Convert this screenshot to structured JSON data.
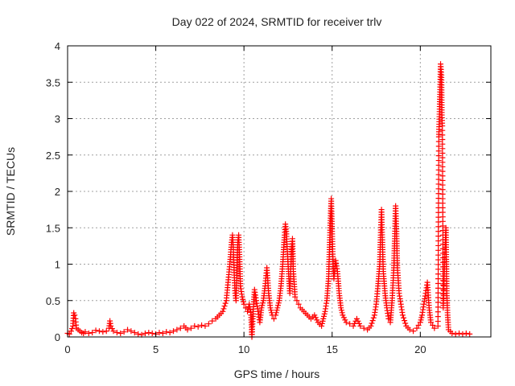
{
  "chart_data": {
    "type": "scatter",
    "title": "Day 022 of 2024, SRMTID for receiver trlv",
    "xlabel": "GPS time / hours",
    "ylabel": "SRMTID / TECUs",
    "xlim": [
      0,
      24
    ],
    "ylim": [
      0,
      4
    ],
    "xticks": [
      0,
      5,
      10,
      15,
      20
    ],
    "yticks": [
      0,
      0.5,
      1,
      1.5,
      2,
      2.5,
      3,
      3.5,
      4
    ],
    "grid": true,
    "marker": "+",
    "series": [
      {
        "name": "SRMTID",
        "color": "#ff0000",
        "points": [
          [
            0.0,
            0.05
          ],
          [
            0.1,
            0.04
          ],
          [
            0.2,
            0.08
          ],
          [
            0.3,
            0.15
          ],
          [
            0.35,
            0.33
          ],
          [
            0.4,
            0.3
          ],
          [
            0.45,
            0.25
          ],
          [
            0.5,
            0.12
          ],
          [
            0.6,
            0.1
          ],
          [
            0.7,
            0.08
          ],
          [
            0.8,
            0.06
          ],
          [
            0.9,
            0.05
          ],
          [
            1.0,
            0.07
          ],
          [
            1.2,
            0.05
          ],
          [
            1.4,
            0.06
          ],
          [
            1.6,
            0.09
          ],
          [
            1.8,
            0.08
          ],
          [
            2.0,
            0.07
          ],
          [
            2.2,
            0.08
          ],
          [
            2.35,
            0.12
          ],
          [
            2.4,
            0.22
          ],
          [
            2.45,
            0.15
          ],
          [
            2.6,
            0.08
          ],
          [
            2.8,
            0.06
          ],
          [
            3.0,
            0.05
          ],
          [
            3.2,
            0.07
          ],
          [
            3.4,
            0.1
          ],
          [
            3.6,
            0.08
          ],
          [
            3.8,
            0.06
          ],
          [
            4.0,
            0.04
          ],
          [
            4.2,
            0.03
          ],
          [
            4.4,
            0.05
          ],
          [
            4.6,
            0.06
          ],
          [
            4.8,
            0.05
          ],
          [
            5.0,
            0.04
          ],
          [
            5.2,
            0.06
          ],
          [
            5.4,
            0.05
          ],
          [
            5.6,
            0.07
          ],
          [
            5.8,
            0.06
          ],
          [
            6.0,
            0.08
          ],
          [
            6.2,
            0.1
          ],
          [
            6.4,
            0.12
          ],
          [
            6.6,
            0.15
          ],
          [
            6.8,
            0.1
          ],
          [
            7.0,
            0.12
          ],
          [
            7.2,
            0.15
          ],
          [
            7.4,
            0.14
          ],
          [
            7.6,
            0.16
          ],
          [
            7.8,
            0.15
          ],
          [
            8.0,
            0.18
          ],
          [
            8.2,
            0.22
          ],
          [
            8.4,
            0.25
          ],
          [
            8.6,
            0.3
          ],
          [
            8.8,
            0.35
          ],
          [
            9.0,
            0.5
          ],
          [
            9.1,
            0.75
          ],
          [
            9.2,
            1.0
          ],
          [
            9.3,
            1.3
          ],
          [
            9.35,
            1.4
          ],
          [
            9.4,
            1.2
          ],
          [
            9.45,
            0.85
          ],
          [
            9.5,
            0.6
          ],
          [
            9.55,
            0.5
          ],
          [
            9.6,
            0.95
          ],
          [
            9.65,
            1.3
          ],
          [
            9.7,
            1.4
          ],
          [
            9.75,
            1.1
          ],
          [
            9.8,
            0.7
          ],
          [
            9.9,
            0.55
          ],
          [
            10.0,
            0.45
          ],
          [
            10.1,
            0.4
          ],
          [
            10.2,
            0.35
          ],
          [
            10.3,
            0.45
          ],
          [
            10.4,
            0.3
          ],
          [
            10.45,
            0.0
          ],
          [
            10.5,
            0.25
          ],
          [
            10.6,
            0.65
          ],
          [
            10.7,
            0.5
          ],
          [
            10.8,
            0.35
          ],
          [
            10.9,
            0.2
          ],
          [
            11.0,
            0.4
          ],
          [
            11.1,
            0.5
          ],
          [
            11.2,
            0.7
          ],
          [
            11.3,
            0.95
          ],
          [
            11.4,
            0.6
          ],
          [
            11.5,
            0.4
          ],
          [
            11.6,
            0.3
          ],
          [
            11.7,
            0.25
          ],
          [
            11.8,
            0.3
          ],
          [
            11.9,
            0.4
          ],
          [
            12.0,
            0.5
          ],
          [
            12.1,
            0.7
          ],
          [
            12.2,
            1.0
          ],
          [
            12.3,
            1.4
          ],
          [
            12.35,
            1.55
          ],
          [
            12.4,
            1.45
          ],
          [
            12.5,
            1.0
          ],
          [
            12.6,
            0.6
          ],
          [
            12.7,
            1.2
          ],
          [
            12.75,
            1.35
          ],
          [
            12.8,
            0.9
          ],
          [
            12.9,
            0.55
          ],
          [
            13.0,
            0.5
          ],
          [
            13.1,
            0.45
          ],
          [
            13.2,
            0.4
          ],
          [
            13.4,
            0.35
          ],
          [
            13.6,
            0.3
          ],
          [
            13.8,
            0.25
          ],
          [
            14.0,
            0.3
          ],
          [
            14.2,
            0.2
          ],
          [
            14.4,
            0.15
          ],
          [
            14.6,
            0.35
          ],
          [
            14.7,
            0.5
          ],
          [
            14.8,
            0.8
          ],
          [
            14.85,
            1.2
          ],
          [
            14.9,
            1.6
          ],
          [
            14.95,
            1.9
          ],
          [
            15.0,
            1.45
          ],
          [
            15.05,
            1.0
          ],
          [
            15.1,
            0.8
          ],
          [
            15.2,
            1.05
          ],
          [
            15.3,
            0.9
          ],
          [
            15.4,
            0.6
          ],
          [
            15.5,
            0.4
          ],
          [
            15.6,
            0.3
          ],
          [
            15.8,
            0.2
          ],
          [
            16.0,
            0.18
          ],
          [
            16.2,
            0.15
          ],
          [
            16.4,
            0.25
          ],
          [
            16.6,
            0.15
          ],
          [
            16.8,
            0.12
          ],
          [
            17.0,
            0.1
          ],
          [
            17.2,
            0.15
          ],
          [
            17.4,
            0.3
          ],
          [
            17.5,
            0.45
          ],
          [
            17.6,
            0.7
          ],
          [
            17.7,
            1.0
          ],
          [
            17.75,
            1.4
          ],
          [
            17.8,
            1.75
          ],
          [
            17.85,
            1.3
          ],
          [
            17.9,
            0.9
          ],
          [
            18.0,
            0.6
          ],
          [
            18.1,
            0.4
          ],
          [
            18.2,
            0.25
          ],
          [
            18.3,
            0.2
          ],
          [
            18.4,
            0.5
          ],
          [
            18.5,
            0.95
          ],
          [
            18.55,
            1.35
          ],
          [
            18.6,
            1.8
          ],
          [
            18.65,
            1.45
          ],
          [
            18.7,
            0.95
          ],
          [
            18.8,
            0.6
          ],
          [
            18.9,
            0.45
          ],
          [
            19.0,
            0.3
          ],
          [
            19.2,
            0.15
          ],
          [
            19.4,
            0.1
          ],
          [
            19.6,
            0.08
          ],
          [
            19.8,
            0.12
          ],
          [
            20.0,
            0.2
          ],
          [
            20.1,
            0.3
          ],
          [
            20.2,
            0.45
          ],
          [
            20.3,
            0.6
          ],
          [
            20.4,
            0.75
          ],
          [
            20.5,
            0.4
          ],
          [
            20.6,
            0.2
          ],
          [
            20.8,
            0.12
          ],
          [
            21.0,
            0.15
          ],
          [
            21.05,
            2.75
          ],
          [
            21.1,
            3.2
          ],
          [
            21.12,
            3.4
          ],
          [
            21.15,
            3.75
          ],
          [
            21.2,
            3.6
          ],
          [
            21.22,
            3.05
          ],
          [
            21.25,
            2.9
          ],
          [
            21.3,
            0.4
          ],
          [
            21.35,
            0.8
          ],
          [
            21.4,
            1.2
          ],
          [
            21.45,
            1.5
          ],
          [
            21.5,
            0.6
          ],
          [
            21.55,
            0.3
          ],
          [
            21.6,
            0.1
          ],
          [
            21.8,
            0.05
          ],
          [
            22.0,
            0.04
          ],
          [
            22.2,
            0.05
          ],
          [
            22.4,
            0.04
          ],
          [
            22.6,
            0.05
          ],
          [
            22.8,
            0.04
          ]
        ]
      }
    ]
  }
}
